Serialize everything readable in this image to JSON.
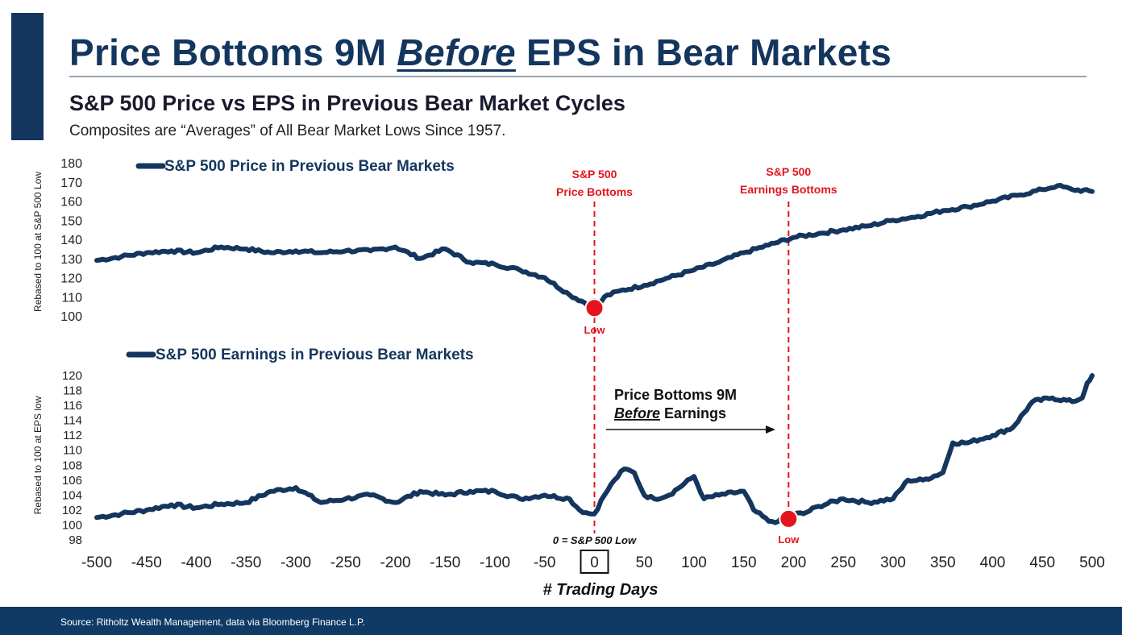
{
  "title_pre": "Price Bottoms 9M ",
  "title_em": "Before",
  "title_post": " EPS in Bear Markets",
  "subtitle": "S&P 500 Price vs EPS in Previous Bear Market Cycles",
  "note": "Composites are “Averages” of All Bear Market Lows Since 1957.",
  "source": "Source: Ritholtz Wealth Management, data via Bloomberg Finance L.P.",
  "colors": {
    "line": "#14365e",
    "accent": "#e3141e",
    "title": "#14365e",
    "footer": "#0f3a66"
  },
  "chart_data": [
    {
      "type": "line",
      "title": "S&P 500 Price in Previous Bear Markets",
      "ylabel": "Rebased to 100 at S&P 500 Low",
      "yticks": [
        100,
        110,
        120,
        130,
        140,
        150,
        160,
        170,
        180
      ],
      "ylim": [
        95,
        182
      ],
      "xlim": [
        -500,
        500
      ],
      "grid": false,
      "series": [
        {
          "name": "S&P 500 Price in Previous Bear Markets",
          "x": [
            -500,
            -475,
            -450,
            -425,
            -400,
            -375,
            -350,
            -325,
            -300,
            -275,
            -250,
            -225,
            -200,
            -175,
            -150,
            -125,
            -100,
            -75,
            -50,
            -25,
            -10,
            0,
            10,
            25,
            50,
            75,
            100,
            125,
            150,
            175,
            200,
            225,
            250,
            275,
            300,
            325,
            350,
            375,
            400,
            425,
            450,
            465,
            480,
            500
          ],
          "y": [
            129,
            131,
            133,
            134,
            133,
            136,
            135,
            133,
            134,
            133,
            134,
            134,
            136,
            130,
            135,
            128,
            127,
            124,
            120,
            111,
            107,
            102,
            110,
            113,
            116,
            120,
            124,
            128,
            133,
            137,
            141,
            143,
            145,
            147,
            150,
            152,
            155,
            157,
            160,
            163,
            166,
            168,
            166,
            165
          ]
        }
      ],
      "annotations": [
        {
          "x": 0,
          "line1": "S&P 500",
          "line2": "Price Bottoms"
        },
        {
          "x": 195,
          "line1": "S&P 500",
          "line2": "Earnings Bottoms"
        }
      ],
      "low_marker": {
        "x": 0,
        "y": 102,
        "label": "Low"
      }
    },
    {
      "type": "line",
      "title": "S&P 500 Earnings in Previous Bear Markets",
      "ylabel": "Rebased to 100 at EPS low",
      "yticks": [
        98,
        100,
        102,
        104,
        106,
        108,
        110,
        112,
        114,
        116,
        118,
        120
      ],
      "ylim": [
        97.5,
        120.5
      ],
      "xlim": [
        -500,
        500
      ],
      "xticks": [
        -500,
        -450,
        -400,
        -350,
        -300,
        -250,
        -200,
        -150,
        -100,
        -50,
        0,
        50,
        100,
        150,
        200,
        250,
        300,
        350,
        400,
        450,
        500
      ],
      "xlabel": "# Trading Days",
      "grid": false,
      "series": [
        {
          "name": "S&P 500 Earnings in Previous Bear Markets",
          "x": [
            -500,
            -475,
            -450,
            -425,
            -400,
            -375,
            -350,
            -325,
            -300,
            -275,
            -250,
            -225,
            -200,
            -175,
            -150,
            -125,
            -100,
            -75,
            -50,
            -25,
            -15,
            -5,
            0,
            10,
            20,
            30,
            40,
            50,
            60,
            75,
            100,
            110,
            125,
            150,
            160,
            175,
            185,
            195,
            210,
            225,
            250,
            275,
            300,
            315,
            330,
            350,
            360,
            375,
            400,
            420,
            440,
            460,
            480,
            490,
            495,
            500
          ],
          "y": [
            101,
            101.5,
            102,
            102.7,
            102.3,
            102.8,
            103,
            104.5,
            105,
            103,
            103.5,
            104,
            103,
            104.5,
            104,
            104.5,
            104.5,
            103.5,
            104,
            103.5,
            102,
            101.5,
            101.5,
            104,
            106,
            107.5,
            107,
            104,
            103.5,
            104,
            106.5,
            103.5,
            104,
            104.5,
            102,
            100.5,
            100.5,
            101.5,
            101.5,
            102.5,
            103.5,
            103,
            103.5,
            106,
            106,
            107,
            111,
            111,
            112,
            113,
            116.5,
            117,
            116.5,
            117,
            119,
            120
          ]
        }
      ],
      "low_marker": {
        "x": 195,
        "y": 100.6,
        "label": "Low"
      },
      "zero_label": "0 = S&P 500 Low",
      "arrow_text_line1": "Price Bottoms 9M",
      "arrow_text_em": "Before",
      "arrow_text_rest": " Earnings"
    }
  ]
}
